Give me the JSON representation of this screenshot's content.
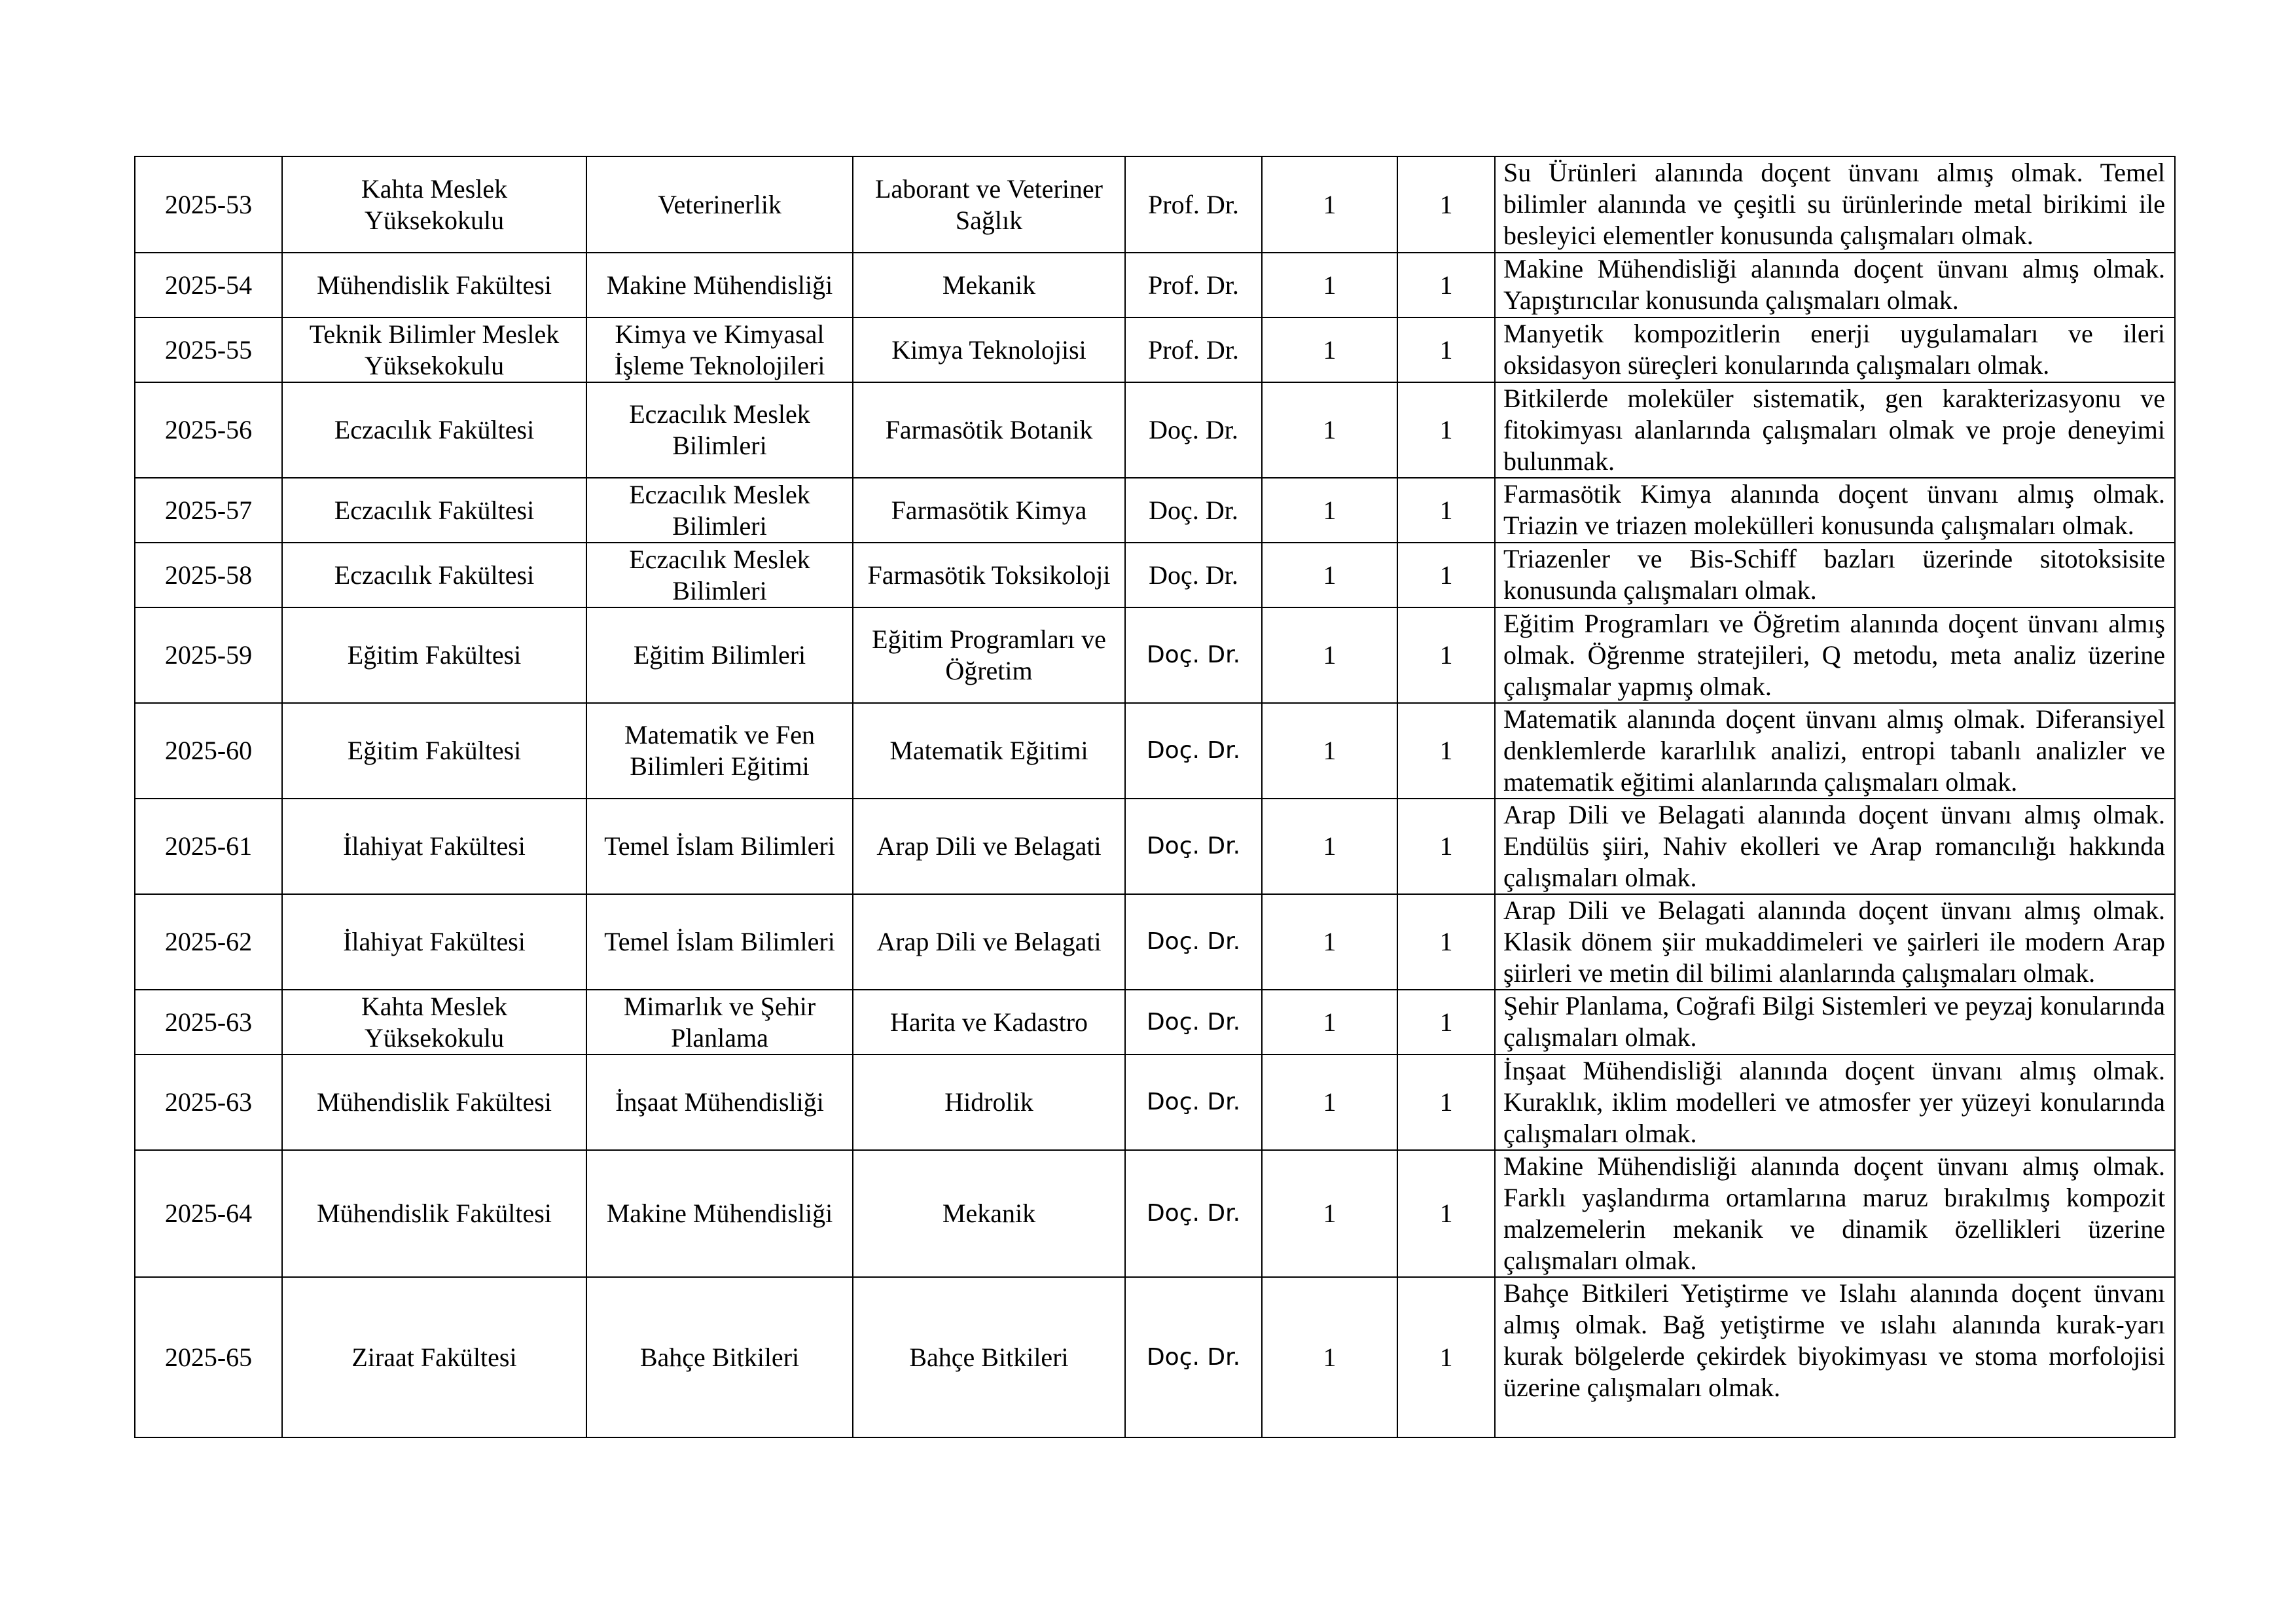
{
  "rows": [
    {
      "no": "2025-53",
      "unit": "Kahta Meslek Yüksekokulu",
      "department": "Veterinerlik",
      "program": "Laborant ve Veteriner Sağlık",
      "title": "Prof. Dr.",
      "count1": "1",
      "count2": "1",
      "requirement": "Su Ürünleri alanında doçent ünvanı almış olmak. Temel bilimler alanında ve çeşitli su ürünlerinde metal birikimi ile besleyici elementler konusunda çalışmaları olmak."
    },
    {
      "no": "2025-54",
      "unit": "Mühendislik Fakültesi",
      "department": "Makine Mühendisliği",
      "program": "Mekanik",
      "title": "Prof. Dr.",
      "count1": "1",
      "count2": "1",
      "requirement": "Makine Mühendisliği alanında doçent ünvanı almış olmak. Yapıştırıcılar konusunda çalışmaları olmak."
    },
    {
      "no": "2025-55",
      "unit": "Teknik Bilimler Meslek Yüksekokulu",
      "department": "Kimya ve Kimyasal İşleme Teknolojileri",
      "program": "Kimya Teknolojisi",
      "title": "Prof. Dr.",
      "count1": "1",
      "count2": "1",
      "requirement": "Manyetik kompozitlerin enerji uygulamaları ve ileri oksidasyon süreçleri konularında çalışmaları olmak."
    },
    {
      "no": "2025-56",
      "unit": "Eczacılık Fakültesi",
      "department": "Eczacılık Meslek Bilimleri",
      "program": "Farmasötik Botanik",
      "title": "Doç. Dr.",
      "count1": "1",
      "count2": "1",
      "requirement": "Bitkilerde moleküler sistematik, gen karakterizasyonu ve fitokimyası alanlarında çalışmaları olmak ve proje deneyimi bulunmak."
    },
    {
      "no": "2025-57",
      "unit": "Eczacılık Fakültesi",
      "department": "Eczacılık Meslek Bilimleri",
      "program": "Farmasötik Kimya",
      "title": "Doç. Dr.",
      "count1": "1",
      "count2": "1",
      "requirement": "Farmasötik Kimya alanında doçent ünvanı almış olmak. Triazin ve triazen molekülleri konusunda çalışmaları olmak."
    },
    {
      "no": "2025-58",
      "unit": "Eczacılık Fakültesi",
      "department": "Eczacılık Meslek Bilimleri",
      "program": "Farmasötik Toksikoloji",
      "title": "Doç. Dr.",
      "count1": "1",
      "count2": "1",
      "requirement": "Triazenler ve Bis-Schiff bazları üzerinde sitotoksisite konusunda çalışmaları olmak."
    },
    {
      "no": "2025-59",
      "unit": "Eğitim Fakültesi",
      "department": "Eğitim Bilimleri",
      "program": "Eğitim Programları ve Öğretim",
      "title": "Doç. Dr.",
      "count1": "1",
      "count2": "1",
      "requirement": "Eğitim Programları ve Öğretim alanında doçent ünvanı almış olmak. Öğrenme stratejileri, Q metodu, meta analiz üzerine çalışmalar yapmış olmak."
    },
    {
      "no": "2025-60",
      "unit": "Eğitim Fakültesi",
      "department": "Matematik ve Fen Bilimleri Eğitimi",
      "program": "Matematik Eğitimi",
      "title": "Doç. Dr.",
      "count1": "1",
      "count2": "1",
      "requirement": "Matematik alanında doçent ünvanı almış olmak. Diferansiyel denklemlerde kararlılık analizi, entropi tabanlı analizler ve matematik eğitimi alanlarında çalışmaları olmak."
    },
    {
      "no": "2025-61",
      "unit": "İlahiyat Fakültesi",
      "department": "Temel İslam Bilimleri",
      "program": "Arap Dili ve Belagati",
      "title": "Doç. Dr.",
      "count1": "1",
      "count2": "1",
      "requirement": "Arap Dili ve Belagati alanında doçent ünvanı almış olmak. Endülüs şiiri, Nahiv ekolleri ve Arap romancılığı hakkında çalışmaları olmak."
    },
    {
      "no": "2025-62",
      "unit": "İlahiyat Fakültesi",
      "department": "Temel İslam Bilimleri",
      "program": "Arap Dili ve Belagati",
      "title": "Doç. Dr.",
      "count1": "1",
      "count2": "1",
      "requirement": "Arap Dili ve Belagati alanında doçent ünvanı almış olmak. Klasik dönem şiir mukaddimeleri ve şairleri ile modern Arap şiirleri ve metin dil bilimi alanlarında çalışmaları olmak."
    },
    {
      "no": "2025-63",
      "unit": "Kahta Meslek Yüksekokulu",
      "department": "Mimarlık ve Şehir Planlama",
      "program": "Harita ve Kadastro",
      "title": "Doç. Dr.",
      "count1": "1",
      "count2": "1",
      "requirement": "Şehir Planlama, Coğrafi Bilgi Sistemleri ve peyzaj konularında çalışmaları olmak."
    },
    {
      "no": "2025-63",
      "unit": "Mühendislik Fakültesi",
      "department": "İnşaat Mühendisliği",
      "program": "Hidrolik",
      "title": "Doç. Dr.",
      "count1": "1",
      "count2": "1",
      "requirement": "İnşaat Mühendisliği alanında doçent ünvanı almış olmak. Kuraklık, iklim modelleri ve atmosfer yer yüzeyi konularında çalışmaları olmak."
    },
    {
      "no": "2025-64",
      "unit": "Mühendislik Fakültesi",
      "department": "Makine Mühendisliği",
      "program": "Mekanik",
      "title": "Doç. Dr.",
      "count1": "1",
      "count2": "1",
      "requirement": "Makine Mühendisliği alanında doçent ünvanı almış olmak. Farklı yaşlandırma ortamlarına maruz bırakılmış kompozit malzemelerin mekanik ve dinamik özellikleri üzerine çalışmaları olmak."
    },
    {
      "no": "2025-65",
      "unit": "Ziraat Fakültesi",
      "department": "Bahçe Bitkileri",
      "program": "Bahçe Bitkileri",
      "title": "Doç. Dr.",
      "count1": "1",
      "count2": "1",
      "requirement": "Bahçe Bitkileri Yetiştirme ve Islahı alanında doçent ünvanı almış olmak. Bağ yetiştirme ve ıslahı alanında kurak-yarı kurak bölgelerde çekirdek biyokimyası ve stoma morfolojisi üzerine çalışmaları olmak."
    }
  ]
}
